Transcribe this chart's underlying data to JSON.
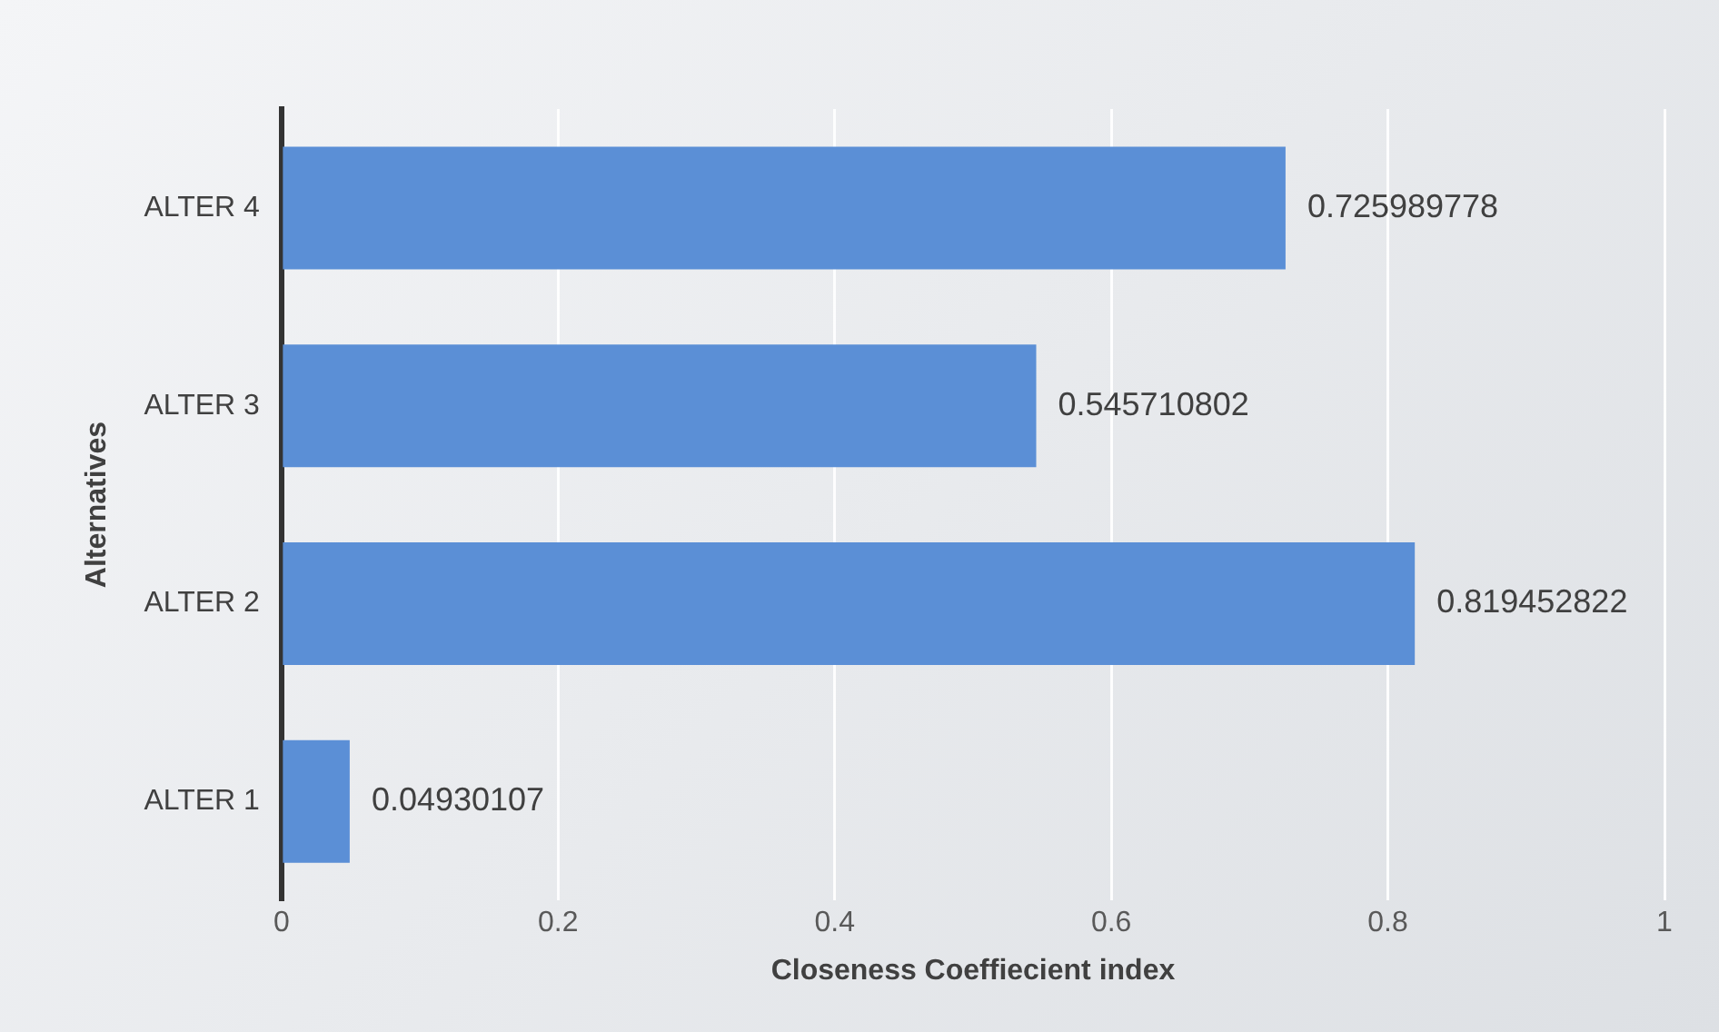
{
  "chart_data": {
    "type": "bar",
    "orientation": "horizontal",
    "xlabel": "Closeness Coeffiecient index",
    "ylabel": "Alternatives",
    "categories": [
      "ALTER 4",
      "ALTER 3",
      "ALTER 2",
      "ALTER 1"
    ],
    "values": [
      0.725989778,
      0.545710802,
      0.819452822,
      0.04930107
    ],
    "color": "#5b8fd6",
    "xlim": [
      0,
      1
    ],
    "xticks": [
      0,
      0.2,
      0.4,
      0.6,
      0.8,
      1
    ],
    "grid": "x",
    "data_labels": true
  }
}
